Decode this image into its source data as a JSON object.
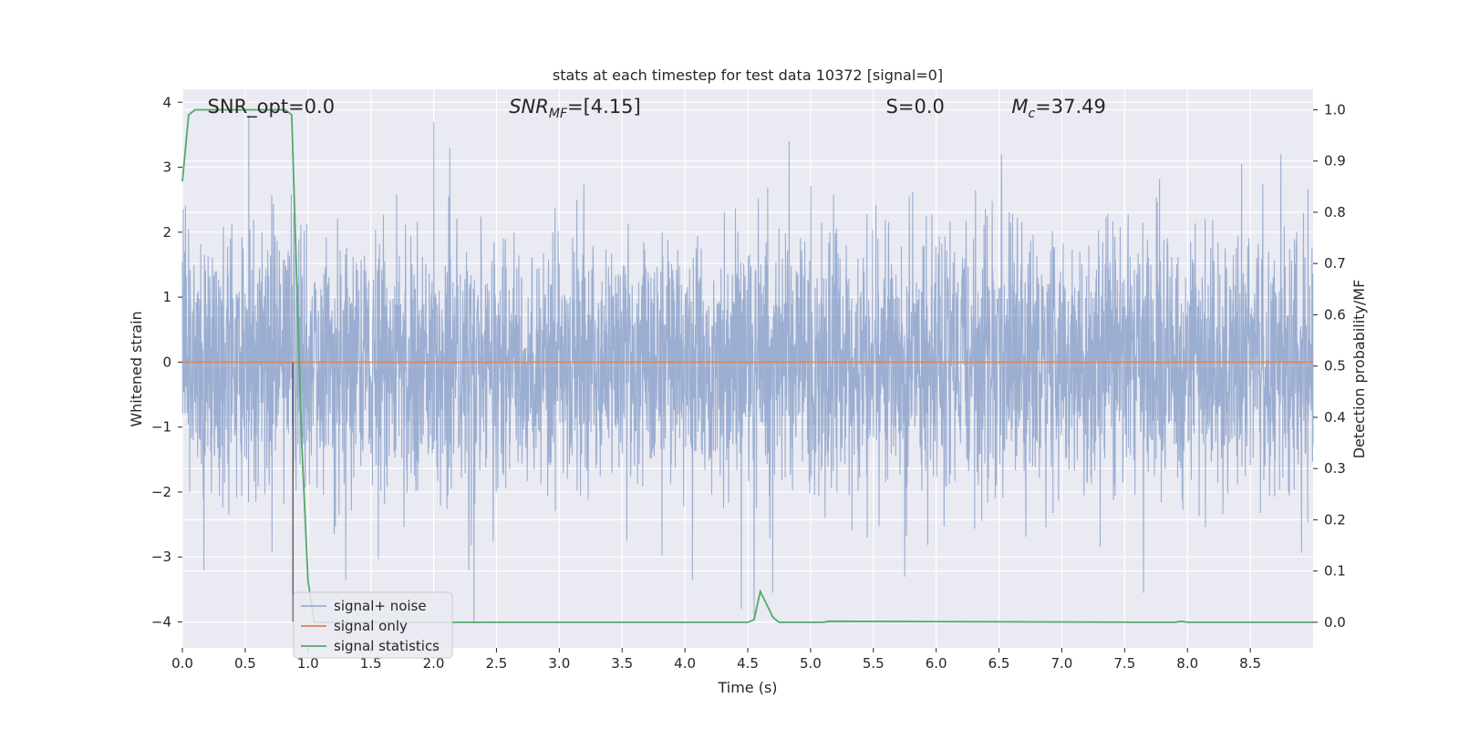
{
  "chart_data": {
    "type": "line",
    "title": "stats at each timestep for test data 10372 [signal=0]",
    "xlabel": "Time (s)",
    "ylabel": "Whitened strain",
    "y2label": "Detection probability/MF",
    "xlim": [
      0,
      9.0
    ],
    "ylim": [
      -4.4,
      4.2
    ],
    "y2lim": [
      -0.05,
      1.04
    ],
    "x_ticks": [
      "0.0",
      "0.5",
      "1.0",
      "1.5",
      "2.0",
      "2.5",
      "3.0",
      "3.5",
      "4.0",
      "4.5",
      "5.0",
      "5.5",
      "6.0",
      "6.5",
      "7.0",
      "7.5",
      "8.0",
      "8.5"
    ],
    "y_ticks": [
      "4",
      "3",
      "2",
      "1",
      "0",
      "−1",
      "−2",
      "−3",
      "−4"
    ],
    "y2_ticks": [
      "1.0",
      "0.9",
      "0.8",
      "0.7",
      "0.6",
      "0.5",
      "0.4",
      "0.3",
      "0.2",
      "0.1",
      "0.0"
    ],
    "grid": true,
    "legend_position": "lower-left",
    "annotations": [
      {
        "text": "SNR_opt=0.0",
        "x": 0.2
      },
      {
        "text": "SNR_MF=[4.15]",
        "x": 2.6
      },
      {
        "text": "S=0.0",
        "x": 5.6
      },
      {
        "text": "M_c=37.49",
        "x": 6.6
      }
    ],
    "series": [
      {
        "name": "signal+ noise",
        "axis": "left",
        "color": "#4c72b0",
        "alpha": 0.5,
        "note": "white noise, roughly normal with std ~1, range about -4 to 4",
        "spikes": [
          {
            "x": 0.53,
            "y": 3.8
          },
          {
            "x": 2.0,
            "y": 3.7
          },
          {
            "x": 2.13,
            "y": 3.3
          },
          {
            "x": 4.83,
            "y": 3.4
          },
          {
            "x": 6.52,
            "y": 3.2
          },
          {
            "x": 8.43,
            "y": 3.05
          },
          {
            "x": 0.17,
            "y": -3.2
          },
          {
            "x": 1.3,
            "y": -3.35
          },
          {
            "x": 2.32,
            "y": -4.0
          },
          {
            "x": 4.06,
            "y": -3.35
          },
          {
            "x": 4.45,
            "y": -3.8
          },
          {
            "x": 4.55,
            "y": -3.9
          },
          {
            "x": 4.7,
            "y": -3.55
          },
          {
            "x": 5.75,
            "y": -3.3
          },
          {
            "x": 7.65,
            "y": -3.55
          }
        ]
      },
      {
        "name": "signal only",
        "axis": "left",
        "color": "#dd8452",
        "x": [
          0.0,
          9.0
        ],
        "y": [
          0.0,
          0.0
        ]
      },
      {
        "name": "signal statistics",
        "axis": "right",
        "color": "#55a868",
        "x": [
          0.0,
          0.05,
          0.1,
          0.15,
          0.5,
          0.82,
          0.87,
          0.9,
          0.95,
          1.0,
          1.05,
          4.5,
          4.55,
          4.6,
          4.7,
          4.75,
          5.1,
          5.15,
          7.9,
          7.95,
          8.0,
          9.0
        ],
        "y": [
          0.86,
          0.99,
          1.0,
          1.0,
          1.0,
          1.0,
          0.99,
          0.75,
          0.35,
          0.08,
          0.0,
          0.0,
          0.005,
          0.06,
          0.01,
          0.0,
          0.0,
          0.002,
          0.0,
          0.002,
          0.0,
          0.0
        ]
      }
    ]
  }
}
